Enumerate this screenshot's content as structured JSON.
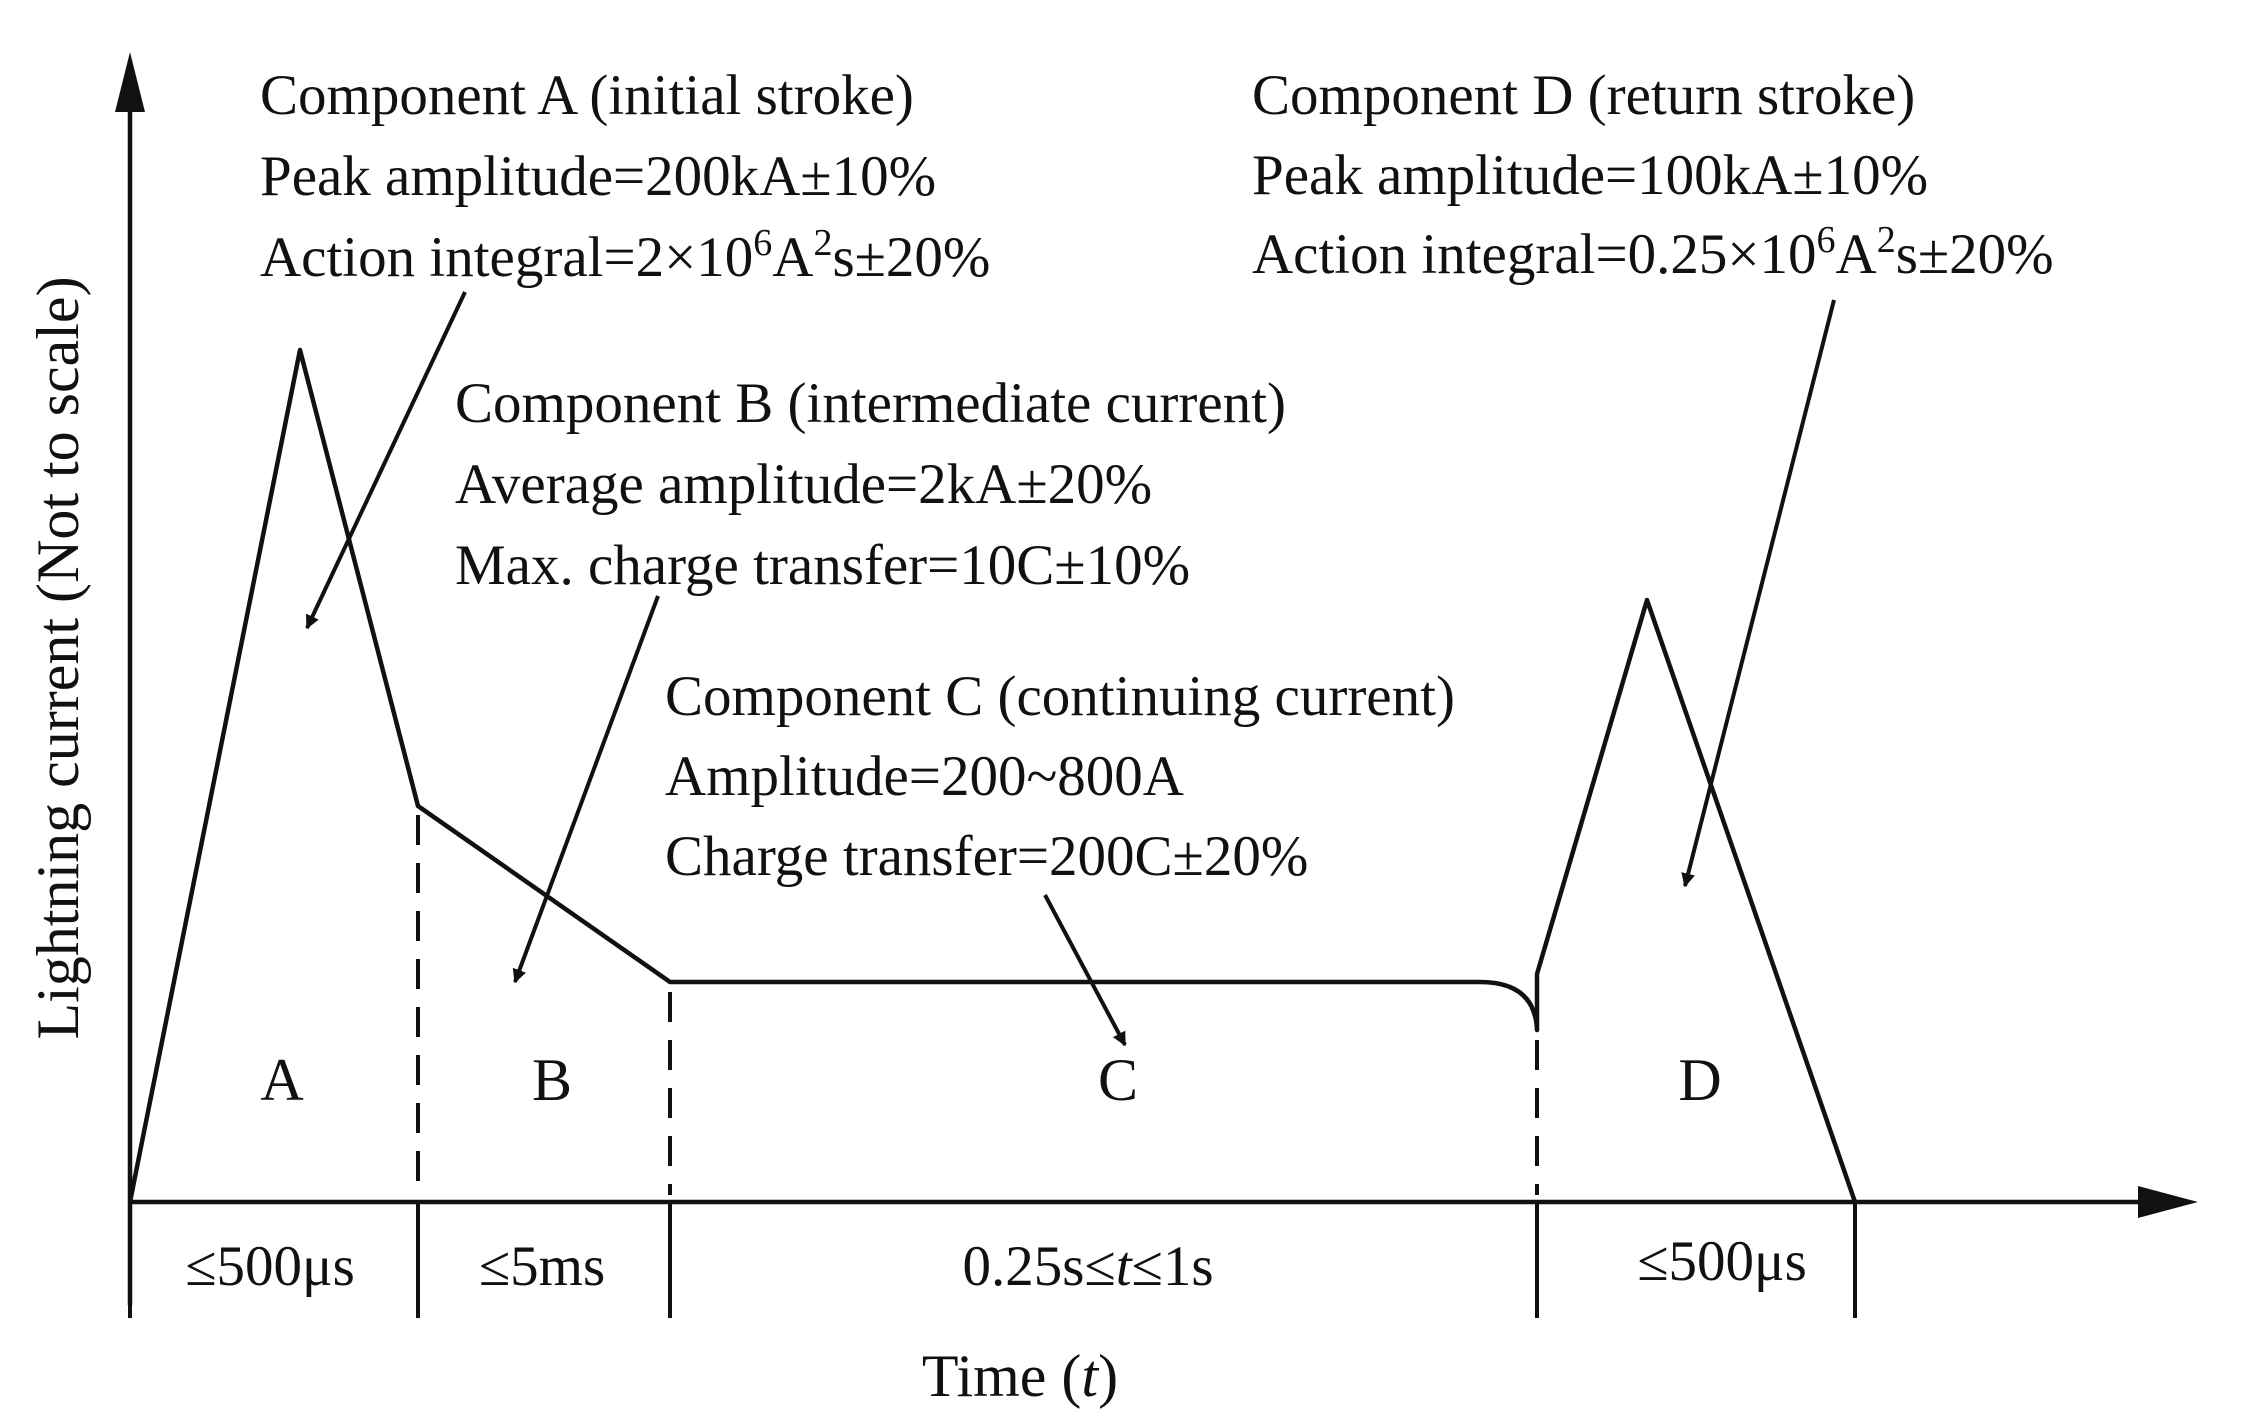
{
  "axes": {
    "ylabel": "Lightning current (Not to scale)",
    "xlabel_text": "Time (",
    "xlabel_var": "t",
    "xlabel_close": ")"
  },
  "components": {
    "A": {
      "title": "Component A (initial stroke)",
      "line1": "Peak amplitude=200kA±10%",
      "line2_pre": "Action integral=2×10",
      "line2_exp1": "6",
      "line2_mid": "A",
      "line2_exp2": "2",
      "line2_post": "s±20%"
    },
    "B": {
      "title": "Component B (intermediate current)",
      "line1": "Average amplitude=2kA±20%",
      "line2": "Max. charge transfer=10C±10%"
    },
    "C": {
      "title": "Component C (continuing current)",
      "line1": "Amplitude=200~800A",
      "line2": "Charge transfer=200C±20%"
    },
    "D": {
      "title": "Component D (return stroke)",
      "line1": "Peak amplitude=100kA±10%",
      "line2_pre": "Action integral=0.25×10",
      "line2_exp1": "6",
      "line2_mid": "A",
      "line2_exp2": "2",
      "line2_post": "s±20%"
    }
  },
  "segments": {
    "A": "A",
    "B": "B",
    "C": "C",
    "D": "D"
  },
  "durations": {
    "A": "≤500μs",
    "B": "≤5ms",
    "C_pre": "0.25s≤",
    "C_var": "t",
    "C_post": "≤1s",
    "D": "≤500μs"
  }
}
